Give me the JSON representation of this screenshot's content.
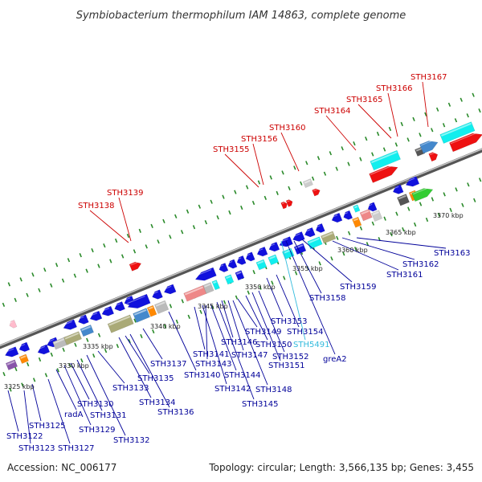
{
  "title": "Symbiobacterium thermophilum IAM 14863, complete genome",
  "footer": {
    "accession": "Accession: NC_006177",
    "topology": "Topology: circular; Length: 3,566,135 bp; Genes: 3,455"
  },
  "colors": {
    "forward_label": "#cc0000",
    "reverse_label": "#000099",
    "rna_label": "#33bbdd",
    "backbone": "#888888",
    "tick": "#2a8a2a"
  },
  "scale_labels": [
    "3325 kbp",
    "3330 kbp",
    "3335 kbp",
    "3340 kbp",
    "3345 kbp",
    "3350 kbp",
    "3355 kbp",
    "3360 kbp",
    "3365 kbp",
    "3370 kbp"
  ],
  "forward_labels": [
    "STH3138",
    "STH3139",
    "STH3155",
    "STH3156",
    "STH3160",
    "STH3164",
    "STH3165",
    "STH3166",
    "STH3167"
  ],
  "reverse_labels": [
    "STH3122",
    "STH3123",
    "STH3125",
    "STH3127",
    "radA",
    "STH3129",
    "STH3130",
    "STH3131",
    "STH3132",
    "STH3133",
    "STH3134",
    "STH3135",
    "STH3136",
    "STH3137",
    "STH3140",
    "STH3141",
    "STH3142",
    "STH3143",
    "STH3144",
    "STH3145",
    "STH3146",
    "STH3147",
    "STH3148",
    "STH3149",
    "STH3150",
    "STH3151",
    "STH3152",
    "STH3153",
    "STH3154",
    "STH5491",
    "greA2",
    "STH3158",
    "STH3159",
    "STH3161",
    "STH3162",
    "STH3163"
  ],
  "rna_label_names": [
    "STH5491"
  ]
}
